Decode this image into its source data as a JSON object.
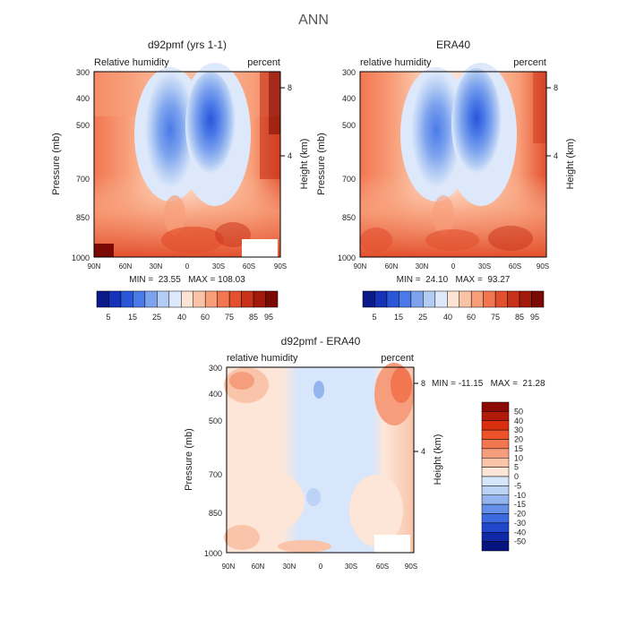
{
  "page_title": "ANN",
  "chart_data": [
    {
      "type": "heatmap",
      "id": "model",
      "title": "d92pmf (yrs 1-1)",
      "subtitle_left": "Relative humidity",
      "subtitle_right": "percent",
      "ylabel": "Pressure (mb)",
      "ylabel_right": "Height (km)",
      "x_ticks": [
        "90N",
        "60N",
        "30N",
        "0",
        "30S",
        "60S",
        "90S"
      ],
      "y_ticks": [
        "300",
        "400",
        "500",
        "700",
        "850",
        "1000"
      ],
      "y_ticks_right": [
        "8",
        "4"
      ],
      "stats": "MIN =  23.55   MAX = 108.03",
      "colorbar": {
        "labels": [
          "5",
          "15",
          "25",
          "40",
          "60",
          "75",
          "85",
          "95"
        ],
        "colors": [
          "#0b1a8a",
          "#1433b8",
          "#2a56d8",
          "#4a7ae8",
          "#7da3ee",
          "#b3ccf4",
          "#dde8fb",
          "#fde3d3",
          "#fbc3a6",
          "#f89f7a",
          "#f27650",
          "#e3502e",
          "#c83218",
          "#a31a0a",
          "#7a0a03"
        ]
      }
    },
    {
      "type": "heatmap",
      "id": "obs",
      "title": "ERA40",
      "subtitle_left": "relative humidity",
      "subtitle_right": "percent",
      "ylabel": "Pressure (mb)",
      "ylabel_right": "Height (km)",
      "x_ticks": [
        "90N",
        "60N",
        "30N",
        "0",
        "30S",
        "60S",
        "90S"
      ],
      "y_ticks": [
        "300",
        "400",
        "500",
        "700",
        "850",
        "1000"
      ],
      "y_ticks_right": [
        "8",
        "4"
      ],
      "stats": "MIN =  24.10   MAX =  93.27",
      "colorbar": {
        "labels": [
          "5",
          "15",
          "25",
          "40",
          "60",
          "75",
          "85",
          "95"
        ],
        "colors": [
          "#0b1a8a",
          "#1433b8",
          "#2a56d8",
          "#4a7ae8",
          "#7da3ee",
          "#b3ccf4",
          "#dde8fb",
          "#fde3d3",
          "#fbc3a6",
          "#f89f7a",
          "#f27650",
          "#e3502e",
          "#c83218",
          "#a31a0a",
          "#7a0a03"
        ]
      }
    },
    {
      "type": "heatmap",
      "id": "diff",
      "title": "d92pmf - ERA40",
      "subtitle_left": "relative humidity",
      "subtitle_right": "percent",
      "ylabel": "Pressure (mb)",
      "ylabel_right": "Height (km)",
      "x_ticks": [
        "90N",
        "60N",
        "30N",
        "0",
        "30S",
        "60S",
        "90S"
      ],
      "y_ticks": [
        "300",
        "400",
        "500",
        "700",
        "850",
        "1000"
      ],
      "y_ticks_right": [
        "8",
        "4"
      ],
      "stats": "MIN = -11.15   MAX =  21.28",
      "colorbar": {
        "labels": [
          "50",
          "40",
          "30",
          "20",
          "15",
          "10",
          "5",
          "0",
          "-5",
          "-10",
          "-15",
          "-20",
          "-30",
          "-40",
          "-50"
        ],
        "colors": [
          "#8b0a03",
          "#b21a0a",
          "#d8300f",
          "#ee5228",
          "#f27650",
          "#f69d7d",
          "#f9c4aa",
          "#fde6d8",
          "#d7e6fb",
          "#bcd3f5",
          "#93b4ee",
          "#6590e8",
          "#3d6ae0",
          "#2147cc",
          "#1128a8",
          "#07147e"
        ]
      }
    }
  ]
}
